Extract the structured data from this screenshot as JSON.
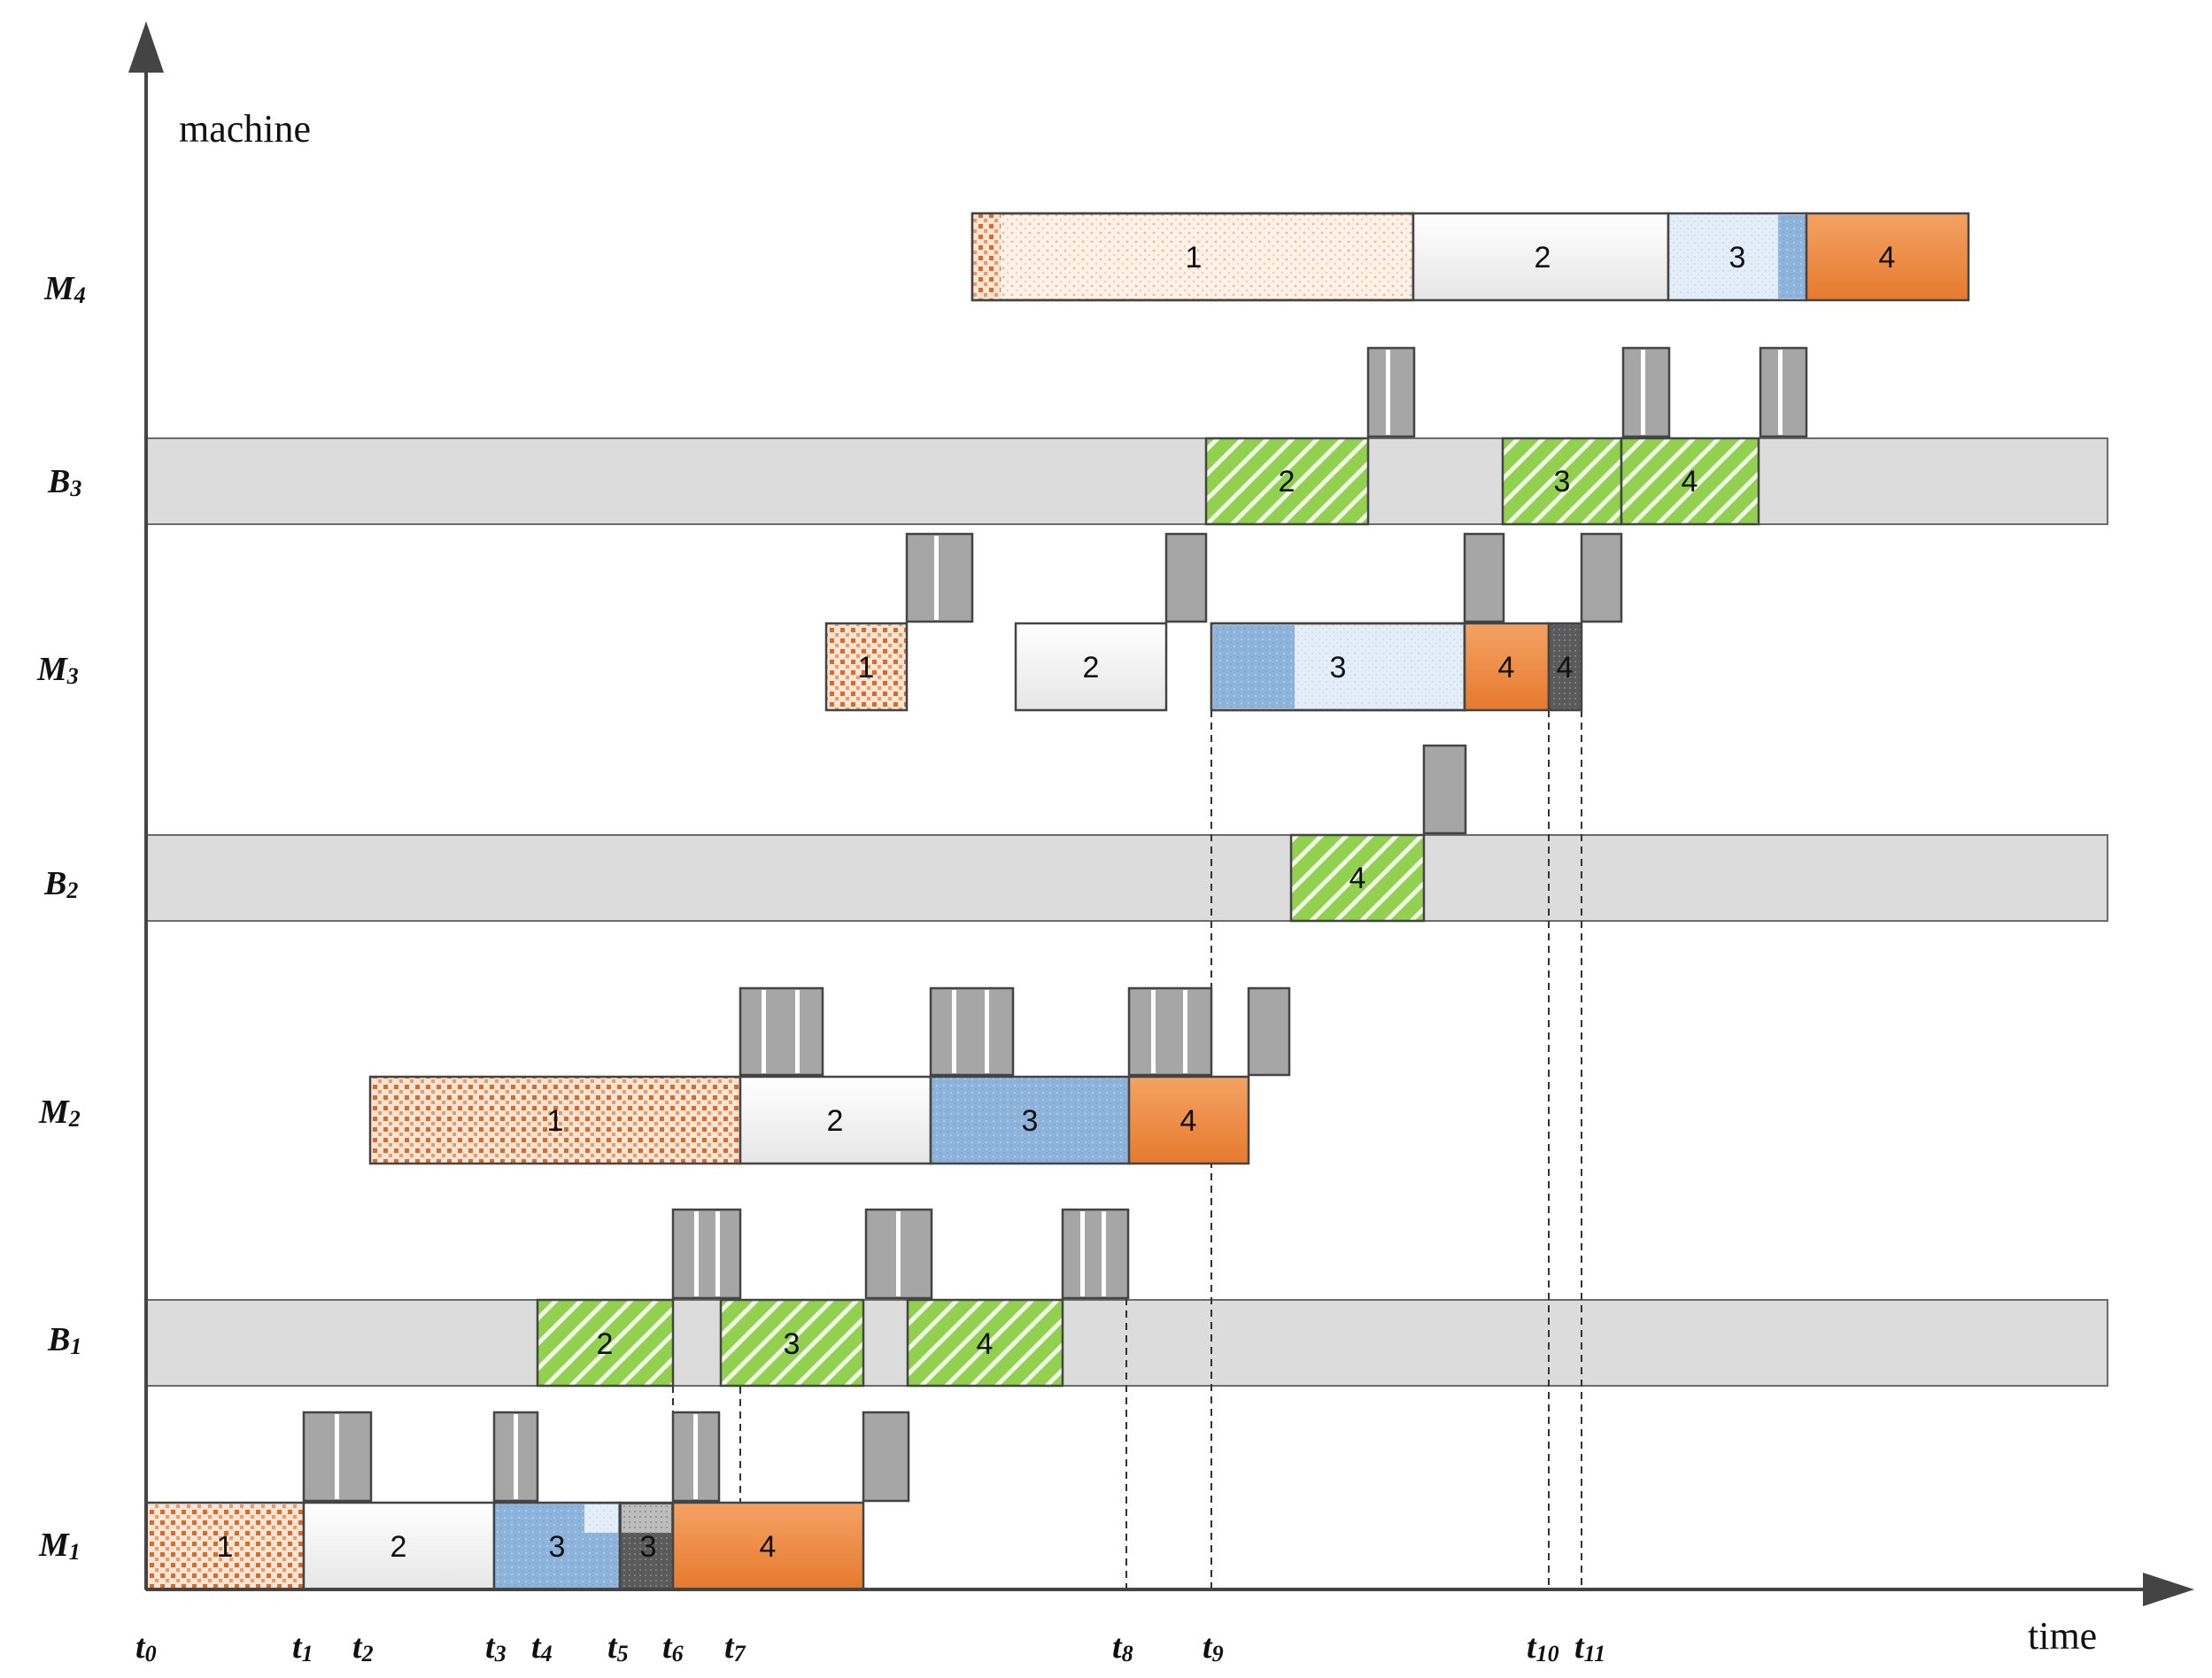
{
  "axis": {
    "y_label": "machine",
    "x_label": "time"
  },
  "rows": [
    {
      "name": "M",
      "sub": "4"
    },
    {
      "name": "B",
      "sub": "3"
    },
    {
      "name": "M",
      "sub": "3"
    },
    {
      "name": "B",
      "sub": "2"
    },
    {
      "name": "M",
      "sub": "2"
    },
    {
      "name": "B",
      "sub": "1"
    },
    {
      "name": "M",
      "sub": "1"
    }
  ],
  "ticks": [
    {
      "name": "t",
      "sub": "0"
    },
    {
      "name": "t",
      "sub": "1"
    },
    {
      "name": "t",
      "sub": "2"
    },
    {
      "name": "t",
      "sub": "3"
    },
    {
      "name": "t",
      "sub": "4"
    },
    {
      "name": "t",
      "sub": "5"
    },
    {
      "name": "t",
      "sub": "6"
    },
    {
      "name": "t",
      "sub": "7"
    },
    {
      "name": "t",
      "sub": "8"
    },
    {
      "name": "t",
      "sub": "9"
    },
    {
      "name": "t",
      "sub": "10"
    },
    {
      "name": "t",
      "sub": "11"
    }
  ],
  "jobs": {
    "m4": [
      "1",
      "2",
      "3",
      "4"
    ],
    "b3": [
      "2",
      "3",
      "4"
    ],
    "m3": [
      "1",
      "2",
      "3",
      "4",
      "4"
    ],
    "b2": [
      "4"
    ],
    "m2": [
      "1",
      "2",
      "3",
      "4"
    ],
    "b1": [
      "2",
      "3",
      "4"
    ],
    "m1": [
      "1",
      "2",
      "3",
      "3",
      "4"
    ]
  },
  "colors": {
    "job1": "#e07b3a",
    "job2": "#f2f2f2",
    "job3": "#8fb4dc",
    "job3_light": "#dce8f5",
    "job4": "#ea8a3e",
    "buffer": "#dcdcdc",
    "green": "#92d050",
    "gray_block": "#a6a6a6",
    "dark_block": "#6e6e6e"
  }
}
